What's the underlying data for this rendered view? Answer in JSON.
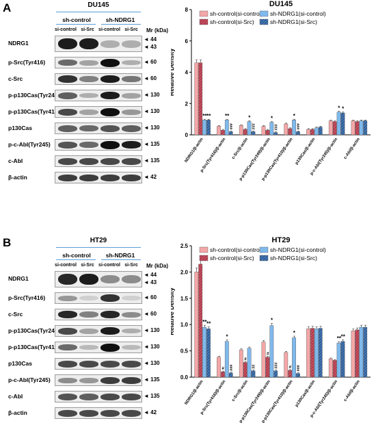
{
  "panel_A": {
    "letter": "A",
    "blot": {
      "title": "DU145",
      "groups": [
        "sh-control",
        "sh-NDRG1"
      ],
      "lanes": [
        "si-control",
        "si-Src",
        "si-control",
        "si-Src"
      ],
      "mr_label": "Mr (kDa)",
      "rows": [
        {
          "label": "NDRG1",
          "markers": [
            "44",
            "43"
          ],
          "levels": [
            0.9,
            0.9,
            0.25,
            0.25
          ]
        },
        {
          "label": "p-Src(Tyr416)",
          "markers": [
            "60"
          ],
          "levels": [
            0.55,
            0.3,
            0.95,
            0.25
          ]
        },
        {
          "label": "c-Src",
          "markers": [
            "60"
          ],
          "levels": [
            0.8,
            0.45,
            0.9,
            0.5
          ]
        },
        {
          "label": "p-p130Cas(Tyr249)",
          "markers": [
            "130"
          ],
          "levels": [
            0.6,
            0.25,
            0.9,
            0.3
          ]
        },
        {
          "label": "p-p130Cas(Tyr410)",
          "markers": [
            "130"
          ],
          "levels": [
            0.7,
            0.3,
            0.95,
            0.35
          ]
        },
        {
          "label": "p130Cas",
          "markers": [
            "130"
          ],
          "levels": [
            0.6,
            0.55,
            0.65,
            0.6
          ]
        },
        {
          "label": "p-c-Abl(Tyr245)",
          "markers": [
            "135"
          ],
          "levels": [
            0.65,
            0.55,
            0.95,
            0.9
          ]
        },
        {
          "label": "c-Abl",
          "markers": [
            "135"
          ],
          "levels": [
            0.7,
            0.7,
            0.7,
            0.7
          ]
        },
        {
          "label": "β-actin",
          "markers": [
            "42"
          ],
          "levels": [
            0.75,
            0.75,
            0.75,
            0.75
          ]
        }
      ]
    }
  },
  "panel_B": {
    "letter": "B",
    "blot": {
      "title": "HT29",
      "groups": [
        "sh-control",
        "sh-NDRG1"
      ],
      "lanes": [
        "si-control",
        "si-Src",
        "si-control",
        "si-Src"
      ],
      "mr_label": "Mr (kDa)",
      "rows": [
        {
          "label": "NDRG1",
          "markers": [
            "44",
            "43"
          ],
          "levels": [
            0.85,
            0.9,
            0.4,
            0.4
          ]
        },
        {
          "label": "p-Src(Tyr416)",
          "markers": [
            "60"
          ],
          "levels": [
            0.35,
            0.1,
            0.8,
            0.1
          ]
        },
        {
          "label": "c-Src",
          "markers": [
            "60"
          ],
          "levels": [
            0.85,
            0.45,
            0.85,
            0.4
          ]
        },
        {
          "label": "p-p130Cas(Tyr249)",
          "markers": [
            "130"
          ],
          "levels": [
            0.7,
            0.3,
            0.9,
            0.25
          ]
        },
        {
          "label": "p-p130Cas(Tyr410)",
          "markers": [
            "130"
          ],
          "levels": [
            0.55,
            0.2,
            0.95,
            0.2
          ]
        },
        {
          "label": "p130Cas",
          "markers": [
            "130"
          ],
          "levels": [
            0.7,
            0.7,
            0.7,
            0.7
          ]
        },
        {
          "label": "p-c-Abl(Tyr245)",
          "markers": [
            "135"
          ],
          "levels": [
            0.4,
            0.35,
            0.75,
            0.75
          ]
        },
        {
          "label": "c-Abl",
          "markers": [
            "135"
          ],
          "levels": [
            0.65,
            0.6,
            0.7,
            0.7
          ]
        },
        {
          "label": "β-actin",
          "markers": [
            "42"
          ],
          "levels": [
            0.7,
            0.7,
            0.7,
            0.7
          ]
        }
      ]
    }
  },
  "series_colors": [
    "#f4a7a7",
    "#b5384a",
    "#7fb9ec",
    "#2c5f9e"
  ],
  "chart_data": [
    {
      "type": "bar",
      "title": "DU145",
      "ylabel": "Relative Density",
      "xlabel": "",
      "ylim": [
        0,
        8
      ],
      "yticks": [
        "0",
        "2",
        "4",
        "6",
        "8"
      ],
      "legend_position": "top-right",
      "categories": [
        "NDRG1/β-actin",
        "p-Src(Tyr416)/β-actin",
        "c-Src/β-actin",
        "p-p130Cas(Tyr249)/β-actin",
        "p-p130Cas(Tyr410)/β-actin",
        "p130Cas/β-actin",
        "p-c-Abl(Tyr245)/β-actin",
        "c-Abl/β-actin"
      ],
      "series": [
        {
          "name": "sh-control(si-control)",
          "values": [
            4.6,
            0.55,
            0.6,
            0.55,
            0.7,
            0.35,
            0.9,
            0.9
          ]
        },
        {
          "name": "sh-control(si-Src)",
          "values": [
            4.6,
            0.3,
            0.35,
            0.3,
            0.4,
            0.35,
            0.85,
            0.85
          ]
        },
        {
          "name": "sh-NDRG1(si-control)",
          "values": [
            0.95,
            0.95,
            0.85,
            0.8,
            0.95,
            0.45,
            1.45,
            0.9
          ]
        },
        {
          "name": "sh-NDRG1(si-Src)",
          "values": [
            0.95,
            0.2,
            0.2,
            0.15,
            0.2,
            0.5,
            1.4,
            0.9
          ]
        }
      ],
      "annotations": [
        {
          "category": 0,
          "series": 2,
          "text": "**"
        },
        {
          "category": 0,
          "series": 3,
          "text": "**"
        },
        {
          "category": 1,
          "series": 2,
          "text": "**"
        },
        {
          "category": 1,
          "series": 3,
          "text": "###"
        },
        {
          "category": 2,
          "series": 2,
          "text": "*"
        },
        {
          "category": 2,
          "series": 3,
          "text": "###"
        },
        {
          "category": 3,
          "series": 2,
          "text": "*"
        },
        {
          "category": 3,
          "series": 3,
          "text": "###"
        },
        {
          "category": 4,
          "series": 2,
          "text": "*"
        },
        {
          "category": 4,
          "series": 3,
          "text": "###"
        },
        {
          "category": 6,
          "series": 2,
          "text": "*"
        },
        {
          "category": 6,
          "series": 3,
          "text": "*"
        }
      ]
    },
    {
      "type": "bar",
      "title": "HT29",
      "ylabel": "Relative Density",
      "xlabel": "",
      "ylim": [
        0,
        2.5
      ],
      "yticks": [
        "0.0",
        "0.5",
        "1.0",
        "1.5",
        "2.0",
        "2.5"
      ],
      "legend_position": "top-right",
      "categories": [
        "NDRG1/β-actin",
        "p-Src(Tyr416)/β-actin",
        "c-Src/β-actin",
        "p-p130Cas(Tyr249)/β-actin",
        "p-p130Cas(Tyr410)/β-actin",
        "p130Cas/β-actin",
        "p-c-Abl(Tyr245)/β-actin",
        "c-Abl/β-actin"
      ],
      "series": [
        {
          "name": "sh-control(si-control)",
          "values": [
            2.0,
            0.38,
            0.52,
            0.67,
            0.47,
            0.92,
            0.35,
            0.88
          ]
        },
        {
          "name": "sh-control(si-Src)",
          "values": [
            2.15,
            0.1,
            0.28,
            0.38,
            0.13,
            0.93,
            0.32,
            0.9
          ]
        },
        {
          "name": "sh-NDRG1(si-control)",
          "values": [
            0.95,
            0.68,
            0.55,
            0.98,
            0.75,
            0.92,
            0.65,
            0.95
          ]
        },
        {
          "name": "sh-NDRG1(si-Src)",
          "values": [
            0.92,
            0.08,
            0.12,
            0.12,
            0.07,
            0.93,
            0.68,
            0.95
          ]
        }
      ],
      "annotations": [
        {
          "category": 0,
          "series": 2,
          "text": "**"
        },
        {
          "category": 0,
          "series": 3,
          "text": "**"
        },
        {
          "category": 1,
          "series": 1,
          "text": "#"
        },
        {
          "category": 1,
          "series": 2,
          "text": "*"
        },
        {
          "category": 1,
          "series": 3,
          "text": "###"
        },
        {
          "category": 2,
          "series": 1,
          "text": "#"
        },
        {
          "category": 2,
          "series": 3,
          "text": "##"
        },
        {
          "category": 3,
          "series": 1,
          "text": "#"
        },
        {
          "category": 3,
          "series": 2,
          "text": "*"
        },
        {
          "category": 3,
          "series": 3,
          "text": "###"
        },
        {
          "category": 4,
          "series": 1,
          "text": "#"
        },
        {
          "category": 4,
          "series": 2,
          "text": "*"
        },
        {
          "category": 4,
          "series": 3,
          "text": "###"
        },
        {
          "category": 6,
          "series": 2,
          "text": "**"
        },
        {
          "category": 6,
          "series": 3,
          "text": "**"
        }
      ]
    }
  ]
}
